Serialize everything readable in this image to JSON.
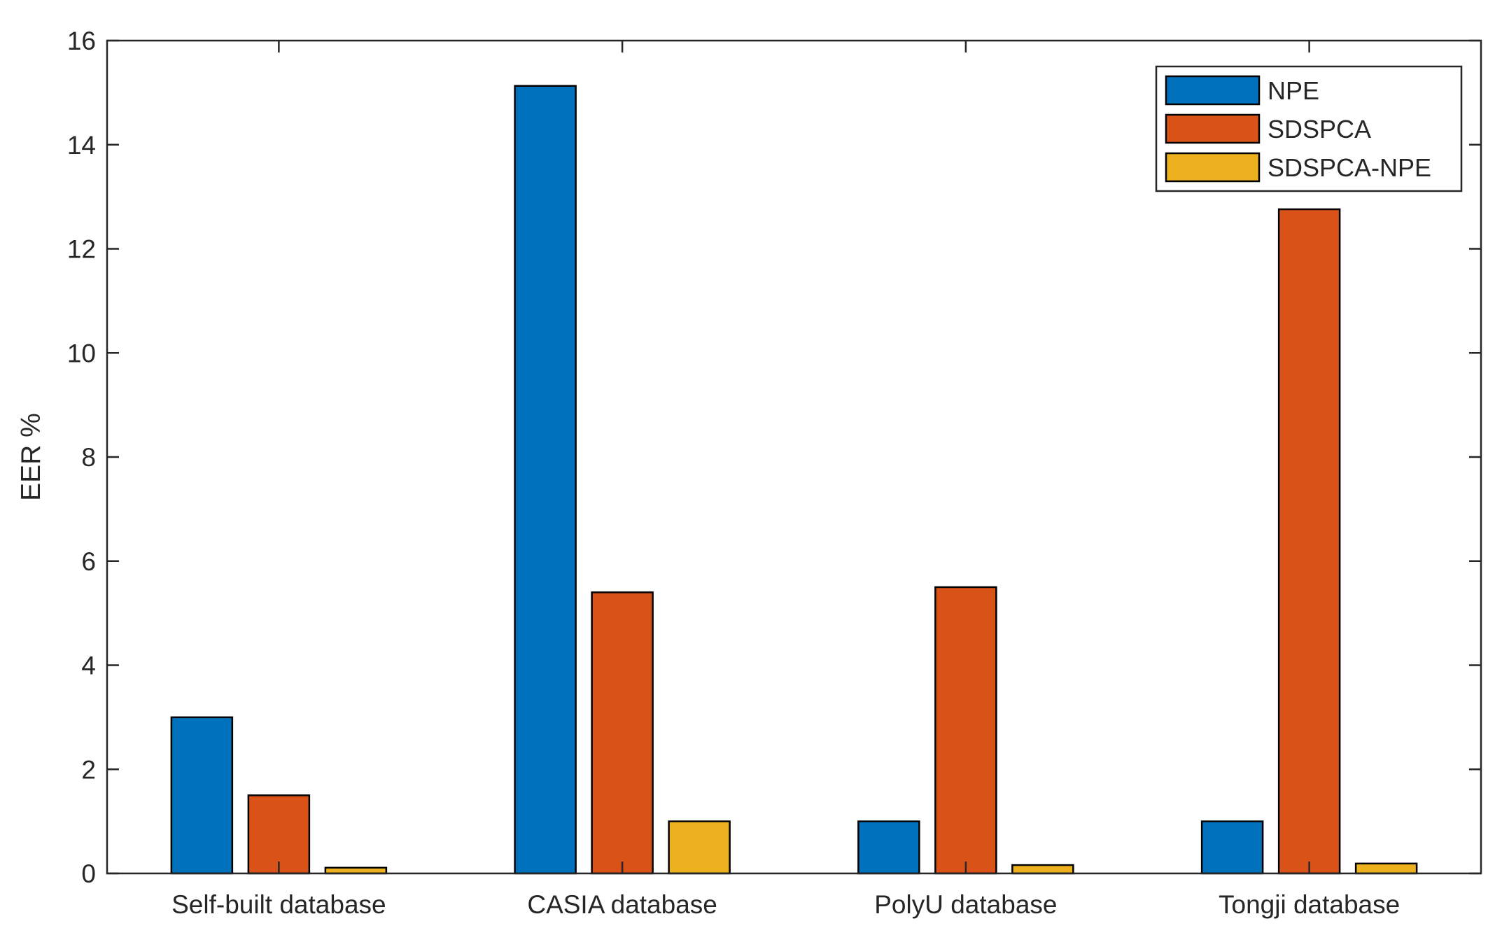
{
  "chart_data": {
    "type": "bar",
    "title": "",
    "xlabel": "",
    "ylabel": "EER %",
    "ylim": [
      0,
      16
    ],
    "yticks": [
      0,
      2,
      4,
      6,
      8,
      10,
      12,
      14,
      16
    ],
    "ytick_labels": [
      "0",
      "2",
      "4",
      "6",
      "8",
      "10",
      "12",
      "14",
      "16"
    ],
    "categories": [
      "Self-built database",
      "CASIA database",
      "PolyU database",
      "Tongji database"
    ],
    "series": [
      {
        "name": "NPE",
        "color": "#0072BD",
        "values": [
          3.0,
          15.13,
          1.0,
          1.0
        ]
      },
      {
        "name": "SDSPCA",
        "color": "#D95319",
        "values": [
          1.5,
          5.4,
          5.5,
          12.76
        ]
      },
      {
        "name": "SDSPCA-NPE",
        "color": "#EDB120",
        "values": [
          0.11,
          1.0,
          0.16,
          0.19
        ]
      }
    ],
    "grid": false,
    "legend_position": "top-right"
  }
}
